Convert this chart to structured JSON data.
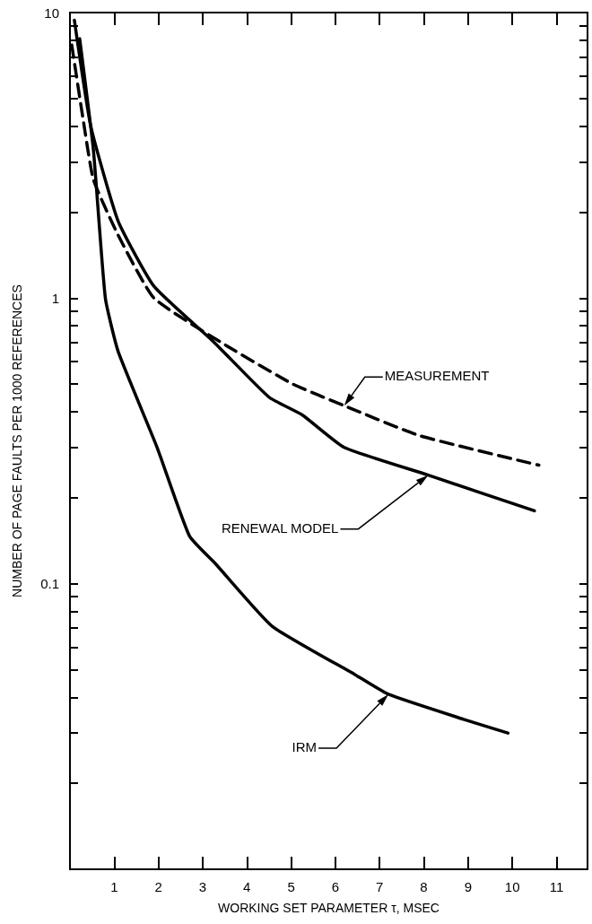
{
  "chart_data": {
    "type": "line",
    "xlabel": "WORKING SET PARAMETER τ, MSEC",
    "ylabel": "NUMBER OF PAGE FAULTS PER 1000 REFERENCES",
    "log": "y",
    "grid": false,
    "marker": "none",
    "line_style": "solid",
    "xlim": [
      0,
      11.7
    ],
    "xticks": [
      1,
      2,
      3,
      4,
      5,
      6,
      7,
      8,
      9,
      10,
      11
    ],
    "ylim": [
      0.01,
      10
    ],
    "yticks": [
      {
        "value": 0.02,
        "label": null
      },
      {
        "value": 0.03,
        "label": null
      },
      {
        "value": 0.04,
        "label": null
      },
      {
        "value": 0.05,
        "label": null
      },
      {
        "value": 0.06,
        "label": null
      },
      {
        "value": 0.07,
        "label": null
      },
      {
        "value": 0.08,
        "label": null
      },
      {
        "value": 0.09,
        "label": null
      },
      0.1,
      {
        "value": 0.2,
        "label": null
      },
      {
        "value": 0.3,
        "label": null
      },
      {
        "value": 0.4,
        "label": null
      },
      {
        "value": 0.5,
        "label": null
      },
      {
        "value": 0.6,
        "label": null
      },
      {
        "value": 0.7,
        "label": null
      },
      {
        "value": 0.8,
        "label": null
      },
      {
        "value": 0.9,
        "label": null
      },
      1,
      {
        "value": 2,
        "label": null
      },
      {
        "value": 3,
        "label": null
      },
      {
        "value": 4,
        "label": null
      },
      {
        "value": 5,
        "label": null
      },
      {
        "value": 6,
        "label": null
      },
      {
        "value": 7,
        "label": null
      },
      {
        "value": 8,
        "label": null
      },
      {
        "value": 9,
        "label": null
      },
      10
    ],
    "series": [
      {
        "name": "MEASUREMENT",
        "color": "#000000",
        "line_style": "dashed",
        "x": [
          0.04,
          0.29,
          0.53,
          1.09,
          1.9,
          3.55,
          5.04,
          6.2,
          7.9,
          10.6
        ],
        "values": [
          7.7,
          4.3,
          2.6,
          1.66,
          1.0,
          0.68,
          0.5,
          0.42,
          0.33,
          0.26
        ]
      },
      {
        "name": "RENEWAL MODEL",
        "color": "#000000",
        "x": [
          0.1,
          0.47,
          1.09,
          1.9,
          3.26,
          4.5,
          5.25,
          6.2,
          8.1,
          10.5
        ],
        "values": [
          9.4,
          4.0,
          1.86,
          1.1,
          0.7,
          0.45,
          0.39,
          0.3,
          0.24,
          0.18
        ]
      },
      {
        "name": "IRM",
        "color": "#000000",
        "x": [
          0.22,
          0.53,
          0.8,
          1.09,
          1.97,
          2.7,
          3.3,
          4.57,
          6.45,
          7.2,
          8.9,
          9.9
        ],
        "values": [
          8.1,
          3.3,
          1.0,
          0.65,
          0.3,
          0.147,
          0.117,
          0.071,
          0.048,
          0.041,
          0.0335,
          0.03
        ]
      }
    ]
  }
}
